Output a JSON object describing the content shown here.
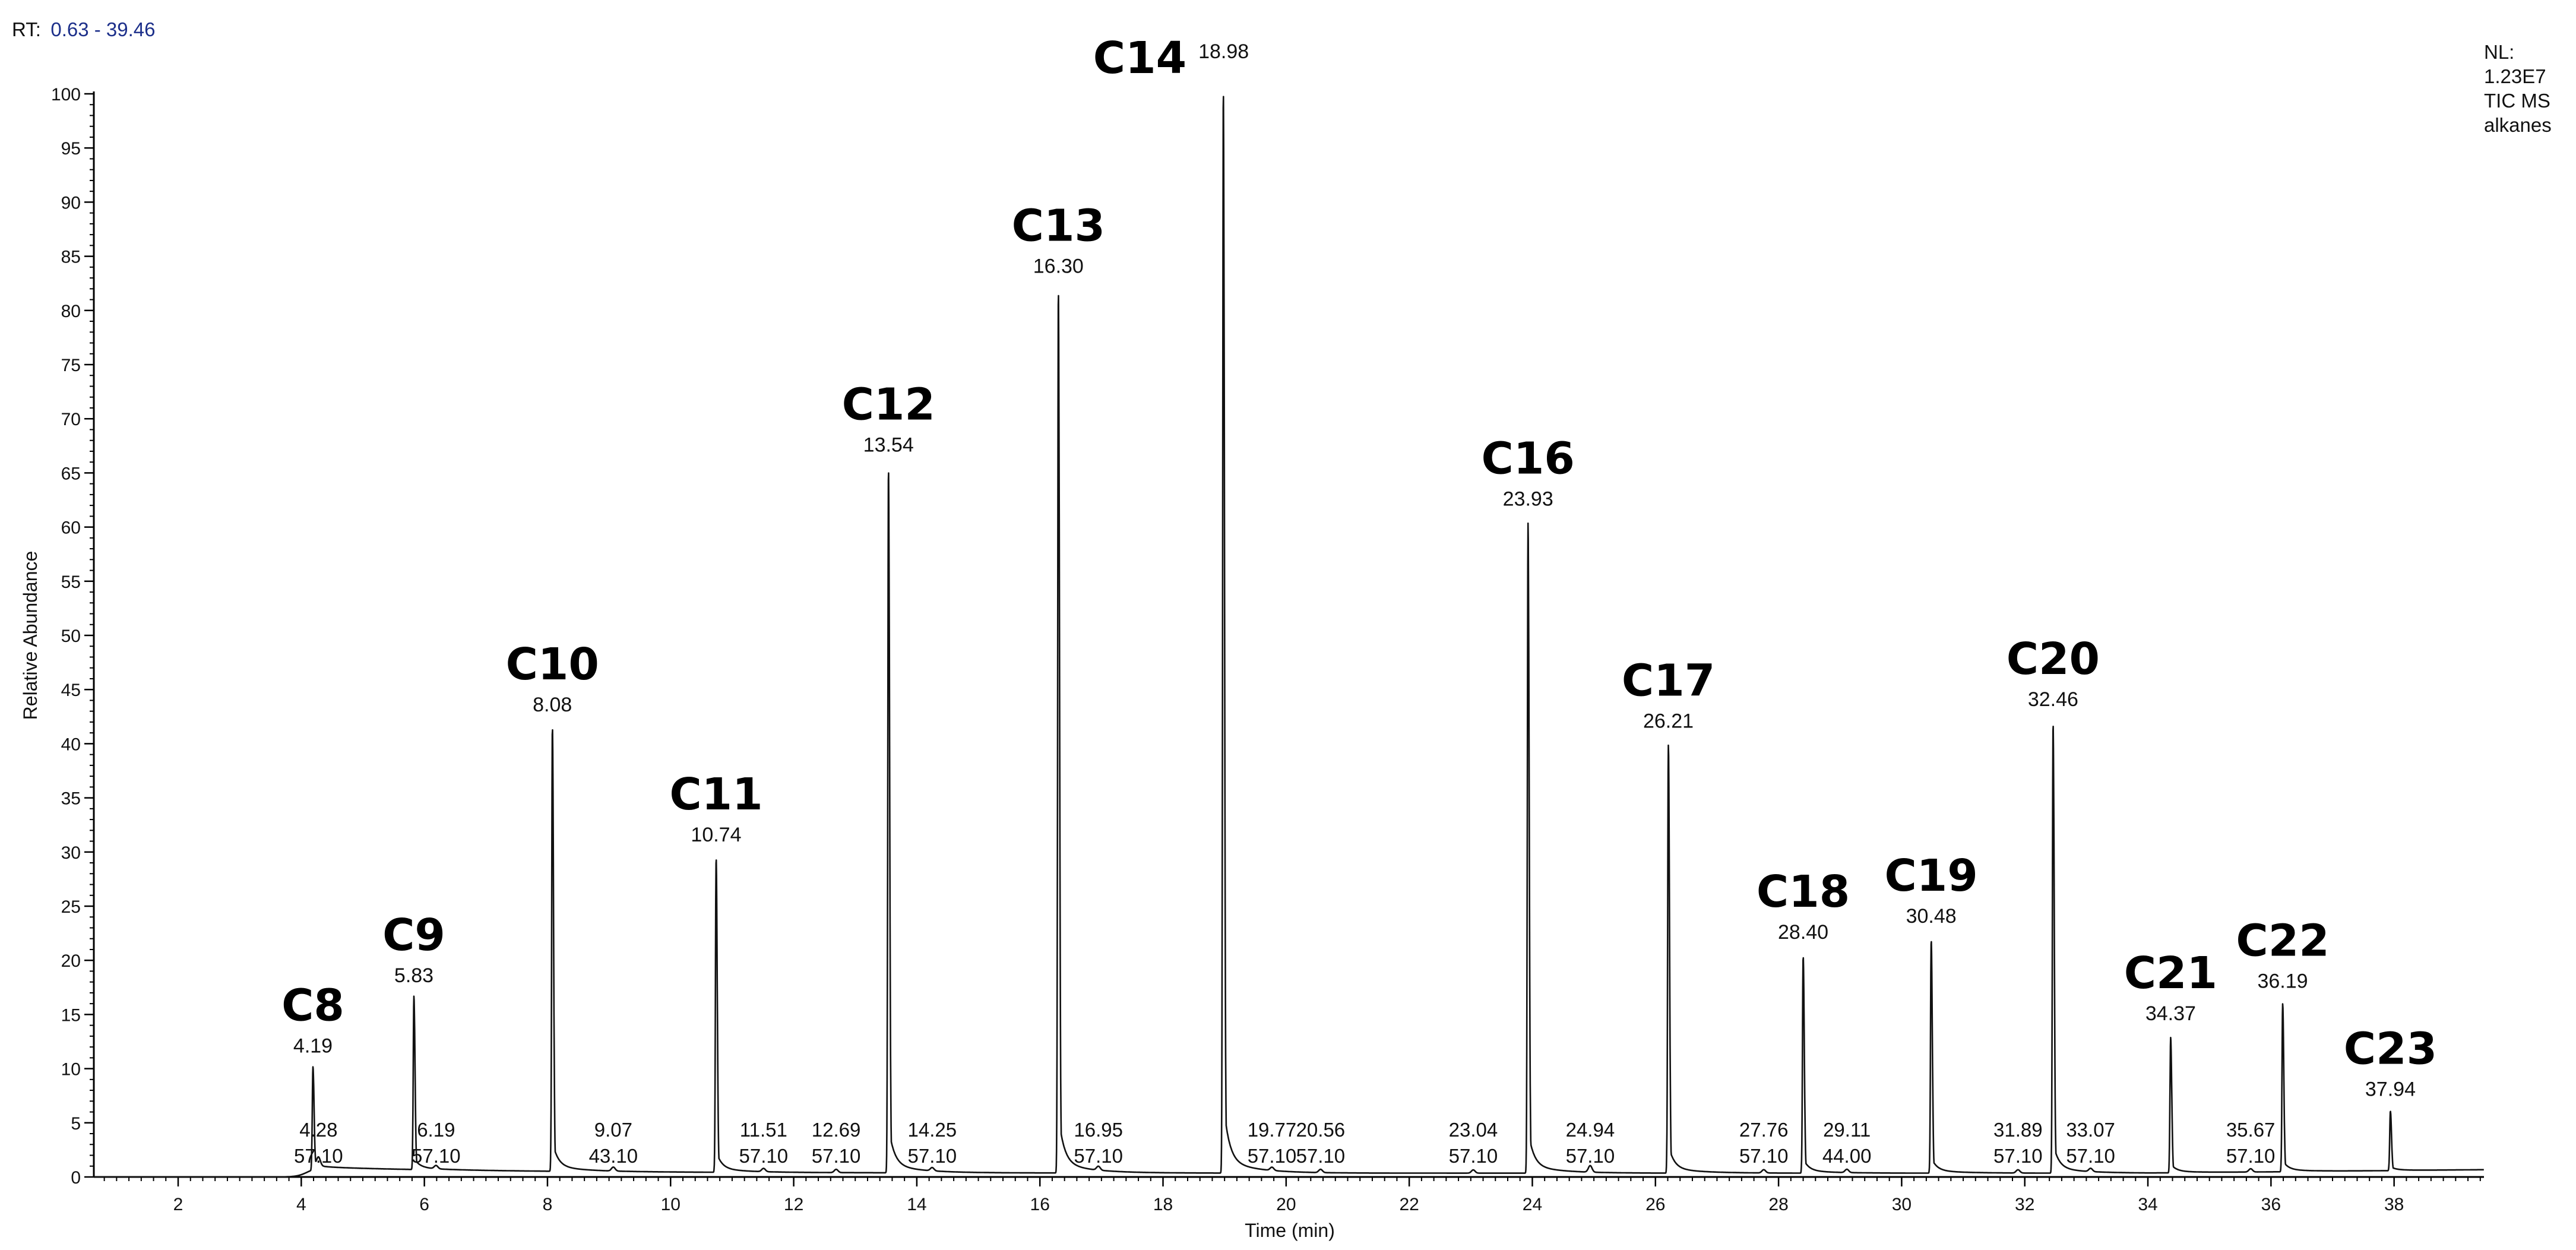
{
  "header": {
    "rt_prefix": "RT:",
    "rt_range": "0.63 - 39.46",
    "nl_lines": [
      "NL:",
      "1.23E7",
      "TIC  MS",
      "alkanes"
    ]
  },
  "chart_data": {
    "type": "line",
    "xlabel": "Time (min)",
    "ylabel": "Relative Abundance",
    "xlim": [
      0.63,
      39.46
    ],
    "ylim": [
      0,
      100
    ],
    "x_ticks": [
      2,
      4,
      6,
      8,
      10,
      12,
      14,
      16,
      18,
      20,
      22,
      24,
      26,
      28,
      30,
      32,
      34,
      36,
      38
    ],
    "y_ticks": [
      0,
      5,
      10,
      15,
      20,
      25,
      30,
      35,
      40,
      45,
      50,
      55,
      60,
      65,
      70,
      75,
      80,
      85,
      90,
      95,
      100
    ],
    "grid": false,
    "peaks": [
      {
        "name": "C8",
        "rt": "4.19",
        "x": 4.19,
        "y": 9.5
      },
      {
        "name": "C9",
        "rt": "5.83",
        "x": 5.83,
        "y": 16
      },
      {
        "name": "C10",
        "rt": "8.08",
        "x": 8.08,
        "y": 41
      },
      {
        "name": "C11",
        "rt": "10.74",
        "x": 10.74,
        "y": 29
      },
      {
        "name": "C12",
        "rt": "13.54",
        "x": 13.54,
        "y": 65
      },
      {
        "name": "C13",
        "rt": "16.30",
        "x": 16.3,
        "y": 81.5
      },
      {
        "name": "C14",
        "rt": "18.98",
        "x": 18.98,
        "y": 100
      },
      {
        "name": "C16",
        "rt": "23.93",
        "x": 23.93,
        "y": 60
      },
      {
        "name": "C17",
        "rt": "26.21",
        "x": 26.21,
        "y": 39.5
      },
      {
        "name": "C18",
        "rt": "28.40",
        "x": 28.4,
        "y": 20
      },
      {
        "name": "C19",
        "rt": "30.48",
        "x": 30.48,
        "y": 21.5
      },
      {
        "name": "C20",
        "rt": "32.46",
        "x": 32.46,
        "y": 41.5
      },
      {
        "name": "C21",
        "rt": "34.37",
        "x": 34.37,
        "y": 12.5
      },
      {
        "name": "C22",
        "rt": "36.19",
        "x": 36.19,
        "y": 15.5
      },
      {
        "name": "C23",
        "rt": "37.94",
        "x": 37.94,
        "y": 5.5
      }
    ],
    "minor_peaks": [
      {
        "rt": "4.28",
        "mz": "57.10",
        "x": 4.28,
        "y": 1.3
      },
      {
        "rt": "6.19",
        "mz": "57.10",
        "x": 6.19,
        "y": 0.5
      },
      {
        "rt": "9.07",
        "mz": "43.10",
        "x": 9.07,
        "y": 0.6
      },
      {
        "rt": "11.51",
        "mz": "57.10",
        "x": 11.51,
        "y": 0.5
      },
      {
        "rt": "12.69",
        "mz": "57.10",
        "x": 12.69,
        "y": 0.5
      },
      {
        "rt": "14.25",
        "mz": "57.10",
        "x": 14.25,
        "y": 0.5
      },
      {
        "rt": "16.95",
        "mz": "57.10",
        "x": 16.95,
        "y": 0.6
      },
      {
        "rt": "19.77",
        "mz": "57.10",
        "x": 19.77,
        "y": 0.5
      },
      {
        "rt": "20.56",
        "mz": "57.10",
        "x": 20.56,
        "y": 0.5
      },
      {
        "rt": "23.04",
        "mz": "57.10",
        "x": 23.04,
        "y": 0.5
      },
      {
        "rt": "24.94",
        "mz": "57.10",
        "x": 24.94,
        "y": 1.0
      },
      {
        "rt": "27.76",
        "mz": "57.10",
        "x": 27.76,
        "y": 0.5
      },
      {
        "rt": "29.11",
        "mz": "44.00",
        "x": 29.11,
        "y": 0.5
      },
      {
        "rt": "31.89",
        "mz": "57.10",
        "x": 31.89,
        "y": 0.5
      },
      {
        "rt": "33.07",
        "mz": "57.10",
        "x": 33.07,
        "y": 0.5
      },
      {
        "rt": "35.67",
        "mz": "57.10",
        "x": 35.67,
        "y": 0.5
      }
    ]
  }
}
